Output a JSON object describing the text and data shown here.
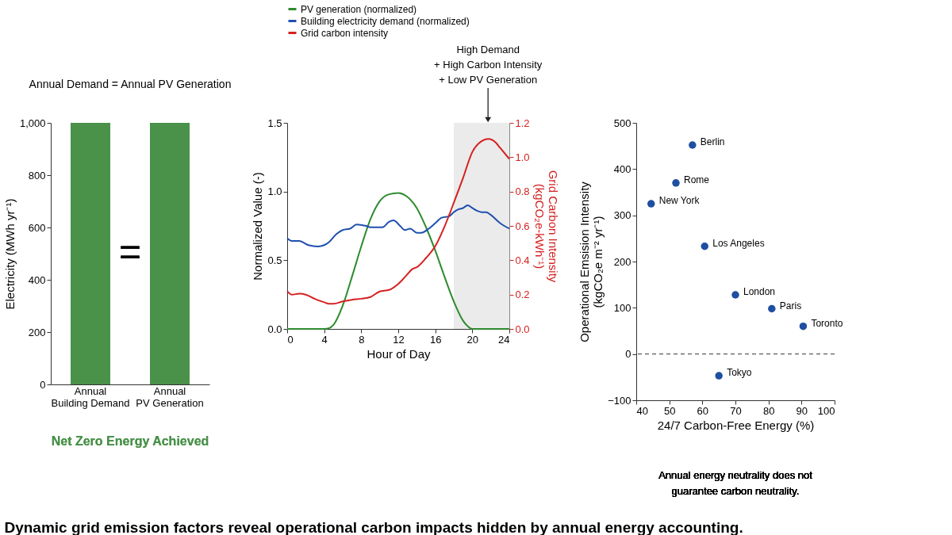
{
  "chart_data": [
    {
      "type": "bar",
      "title": "Annual Demand = Annual PV Generation",
      "categories": [
        "Annual\nBuilding Demand",
        "Annual\nPV Generation"
      ],
      "values": [
        1000,
        1000
      ],
      "color": "#4a914a",
      "ylabel": "Electricity (MWh yr⁻¹)",
      "ylim": [
        0,
        1000
      ],
      "yticks": [
        0,
        200,
        400,
        600,
        800,
        {
          "value": 1000,
          "label": "1,000"
        }
      ],
      "annotations": [
        "=",
        "Net Zero Energy Achieved"
      ]
    },
    {
      "type": "line",
      "xlabel": "Hour of Day",
      "ylabel": "Normalized Value (-)",
      "y2label": "Grid Carbon Intensity\n(kgCO₂e-kWh⁻¹)",
      "xlim": [
        0,
        24
      ],
      "xticks": [
        0,
        4,
        8,
        12,
        16,
        20,
        24
      ],
      "ylim": [
        0,
        1.5
      ],
      "yticks": [
        {
          "value": 0,
          "label": "0.0"
        },
        0.5,
        {
          "value": 1,
          "label": "1.0"
        },
        1.5
      ],
      "y2lim": [
        0,
        1.2
      ],
      "y2ticks": [
        {
          "value": 0,
          "label": "0.0"
        },
        0.2,
        0.4,
        0.6,
        0.8,
        {
          "value": 1,
          "label": "1.0"
        },
        1.2
      ],
      "legend": "top left",
      "line_style": "solid",
      "series": [
        {
          "name": "PV generation (normalized)",
          "color": "#2e8b2e",
          "x": [
            0,
            4,
            4.5,
            5,
            6,
            7,
            8,
            9,
            10,
            11,
            12,
            13,
            14,
            15,
            16,
            17,
            18,
            19,
            19.5,
            20,
            24
          ],
          "values": [
            0,
            0,
            0.005,
            0.03,
            0.17,
            0.38,
            0.6,
            0.8,
            0.93,
            0.98,
            0.99,
            0.96,
            0.88,
            0.74,
            0.57,
            0.38,
            0.2,
            0.06,
            0.02,
            0,
            0
          ]
        },
        {
          "name": "Building electricity demand (normalized)",
          "color": "#1f4fb0",
          "x": [
            0,
            0.5,
            1.3,
            2.3,
            3.3,
            4,
            4.5,
            5.3,
            6,
            6.8,
            7.5,
            8.5,
            9,
            9.8,
            10.3,
            11,
            11.5,
            12.2,
            12.7,
            13.3,
            14,
            14.5,
            15.3,
            16,
            16.7,
            17.5,
            18,
            18.5,
            19,
            19.5,
            20,
            20.5,
            21,
            21.5,
            22,
            23,
            24
          ],
          "values": [
            0.66,
            0.64,
            0.64,
            0.61,
            0.6,
            0.61,
            0.63,
            0.69,
            0.72,
            0.73,
            0.76,
            0.75,
            0.74,
            0.74,
            0.74,
            0.78,
            0.79,
            0.75,
            0.72,
            0.73,
            0.7,
            0.7,
            0.73,
            0.77,
            0.81,
            0.82,
            0.85,
            0.87,
            0.88,
            0.9,
            0.88,
            0.86,
            0.85,
            0.85,
            0.83,
            0.77,
            0.73
          ]
        },
        {
          "name": "Grid carbon intensity",
          "color": "#d62020",
          "axis": "y2",
          "x": [
            0,
            0.5,
            1.3,
            2,
            3,
            4,
            4.5,
            5,
            6,
            7,
            8,
            9,
            10,
            11,
            12,
            13,
            13.5,
            14,
            15,
            16,
            17,
            18,
            19,
            20,
            21,
            21.7,
            22.5,
            23,
            24
          ],
          "values": [
            0.22,
            0.2,
            0.205,
            0.2,
            0.175,
            0.155,
            0.146,
            0.146,
            0.16,
            0.17,
            0.176,
            0.186,
            0.218,
            0.227,
            0.262,
            0.319,
            0.348,
            0.359,
            0.413,
            0.482,
            0.596,
            0.734,
            0.879,
            1.03,
            1.093,
            1.106,
            1.087,
            1.055,
            0.99
          ]
        }
      ],
      "bands": [
        {
          "axis": "x",
          "from": 18,
          "to": 24,
          "color": "#ebebeb"
        }
      ],
      "annotations": [
        {
          "text": "High Demand\n+ High Carbon Intensity\n+ Low PV Generation",
          "x": 21.7,
          "y": 1.5
        }
      ]
    },
    {
      "type": "scatter",
      "xlabel": "24/7 Carbon-Free Energy (%)",
      "ylabel": "Operational Emsision Intensity\n(kgCO₂e m⁻² yr⁻¹)",
      "xlim": [
        40,
        100
      ],
      "xticks": [
        40,
        50,
        60,
        70,
        80,
        90,
        100
      ],
      "ylim": [
        -100,
        500
      ],
      "yticks": [
        {
          "value": -100,
          "label": "−100"
        },
        0,
        100,
        200,
        300,
        400,
        500
      ],
      "marker": "circle",
      "color": "#1f4fa0",
      "x": [
        44.5,
        52,
        57,
        60.7,
        65,
        70,
        81,
        90.5
      ],
      "values": [
        325,
        370,
        452,
        233,
        -47,
        128,
        98,
        60
      ],
      "ref_lines": [
        {
          "axis": "y",
          "value": 0,
          "line_style": "dashed",
          "color": "#333333"
        }
      ],
      "annotations": [
        {
          "text": "New York",
          "x": 44.5,
          "y": 325
        },
        {
          "text": "Rome",
          "x": 52,
          "y": 370
        },
        {
          "text": "Berlin",
          "x": 57,
          "y": 452
        },
        {
          "text": "Los Angeles",
          "x": 60.7,
          "y": 233
        },
        {
          "text": "Tokyo",
          "x": 65,
          "y": -47
        },
        {
          "text": "London",
          "x": 70,
          "y": 128
        },
        {
          "text": "Paris",
          "x": 81,
          "y": 98
        },
        {
          "text": "Toronto",
          "x": 90.5,
          "y": 60
        },
        "Annual energy neutrality does not\nguarantee carbon neutrality.",
        "Dynamic grid emission factors reveal operational carbon impacts hidden by annual energy accounting."
      ]
    }
  ]
}
